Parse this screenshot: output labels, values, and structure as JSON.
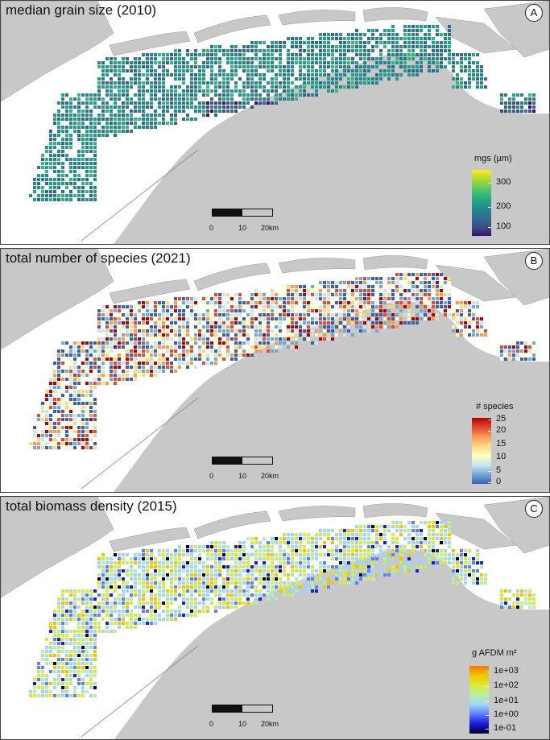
{
  "panels": [
    {
      "id": "A",
      "title": "median grain size (2010)",
      "legend_title": "mgs (µm)",
      "ticks": [
        "300",
        "200",
        "100"
      ],
      "colors": [
        "#3b0f70",
        "#3e4a89",
        "#31688e",
        "#26828e",
        "#1f9e89",
        "#35b779",
        "#6ece58",
        "#b5de2b",
        "#fde725"
      ],
      "tick_fracs": [
        0.2,
        0.56,
        0.86
      ]
    },
    {
      "id": "B",
      "title": "total number of species (2021)",
      "legend_title": "# species",
      "ticks": [
        "25",
        "20",
        "15",
        "10",
        "5",
        "0"
      ],
      "colors": [
        "#3a5fb0",
        "#74a8d4",
        "#c9e6f0",
        "#ffffbf",
        "#fdd884",
        "#f89a57",
        "#e34a33",
        "#b30000"
      ],
      "tick_fracs": [
        0.03,
        0.2,
        0.4,
        0.6,
        0.8,
        0.97
      ]
    },
    {
      "id": "C",
      "title": "total biomass density (2015)",
      "legend_title": "g AFDM  m²",
      "ticks": [
        "1e+03",
        "1e+02",
        "1e+01",
        "1e+00",
        "1e-01"
      ],
      "colors": [
        "#000030",
        "#1a1adf",
        "#5b7dff",
        "#9fd6ff",
        "#b8f0a0",
        "#d5ec3a",
        "#f5c400",
        "#f07800"
      ],
      "tick_fracs": [
        0.08,
        0.3,
        0.52,
        0.73,
        0.93
      ]
    }
  ],
  "scale_bar": {
    "labels": [
      "0",
      "10",
      "20km"
    ]
  }
}
